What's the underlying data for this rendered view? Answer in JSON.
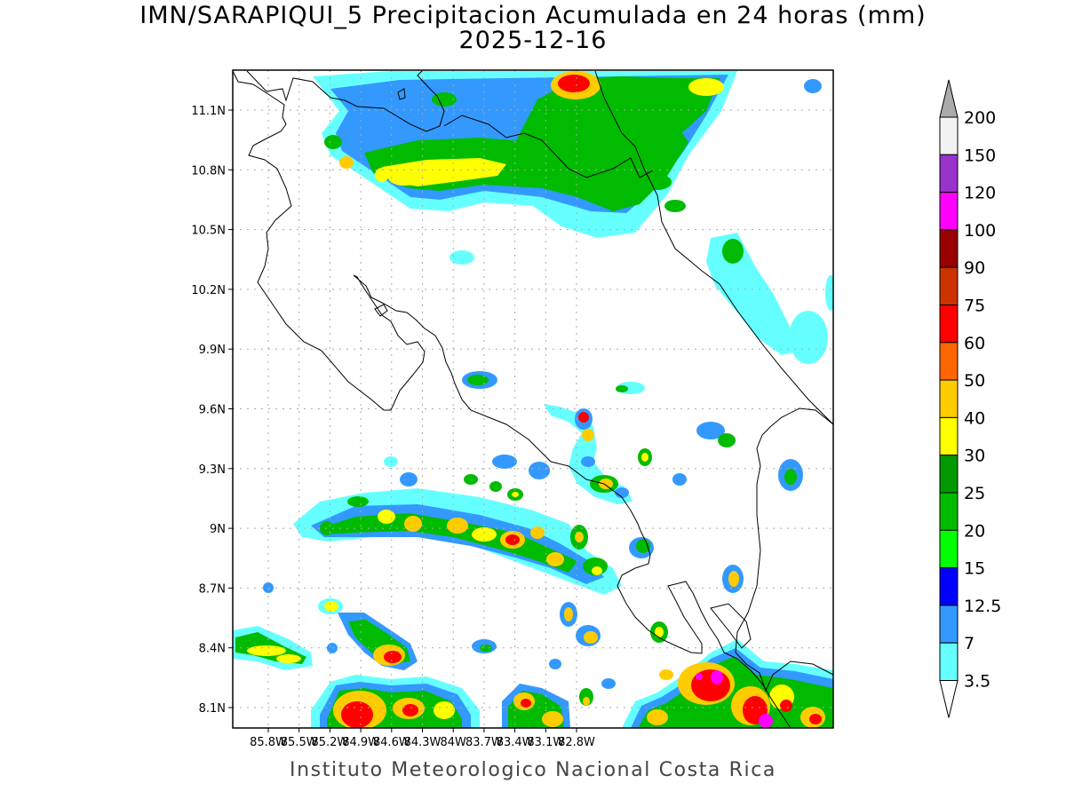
{
  "title": {
    "line1": "IMN/SARAPIQUI_5 Precipitacion Acumulada en 24 horas (mm)",
    "line2": "2025-12-16"
  },
  "footer": "Instituto Meteorologico Nacional Costa Rica",
  "map": {
    "lat_labels": [
      "11.1N",
      "10.8N",
      "10.5N",
      "10.2N",
      "9.9N",
      "9.6N",
      "9.3N",
      "9N",
      "8.7N",
      "8.4N",
      "8.1N"
    ],
    "lon_labels": [
      "85.8W",
      "85.5W",
      "85.2W",
      "84.9W",
      "84.6W",
      "84.3W",
      "84W",
      "83.7W",
      "83.4W",
      "83.1W",
      "82.8W"
    ],
    "grid": true,
    "grid_style": "dotted"
  },
  "colorbar": {
    "levels": [
      "200",
      "150",
      "120",
      "100",
      "90",
      "75",
      "60",
      "50",
      "40",
      "30",
      "25",
      "20",
      "15",
      "12.5",
      "7",
      "3.5"
    ],
    "colors": [
      "#f2f2f2",
      "#9933cc",
      "#ff00ff",
      "#990000",
      "#cc3300",
      "#ff0000",
      "#ff6600",
      "#ffcc00",
      "#ffff00",
      "#009900",
      "#00bb00",
      "#00ff00",
      "#0000ff",
      "#3399ff",
      "#66ffff",
      "#ffffff"
    ],
    "top_arrow_color": "#aaaaaa",
    "bottom_arrow_color": "#ffffff"
  }
}
